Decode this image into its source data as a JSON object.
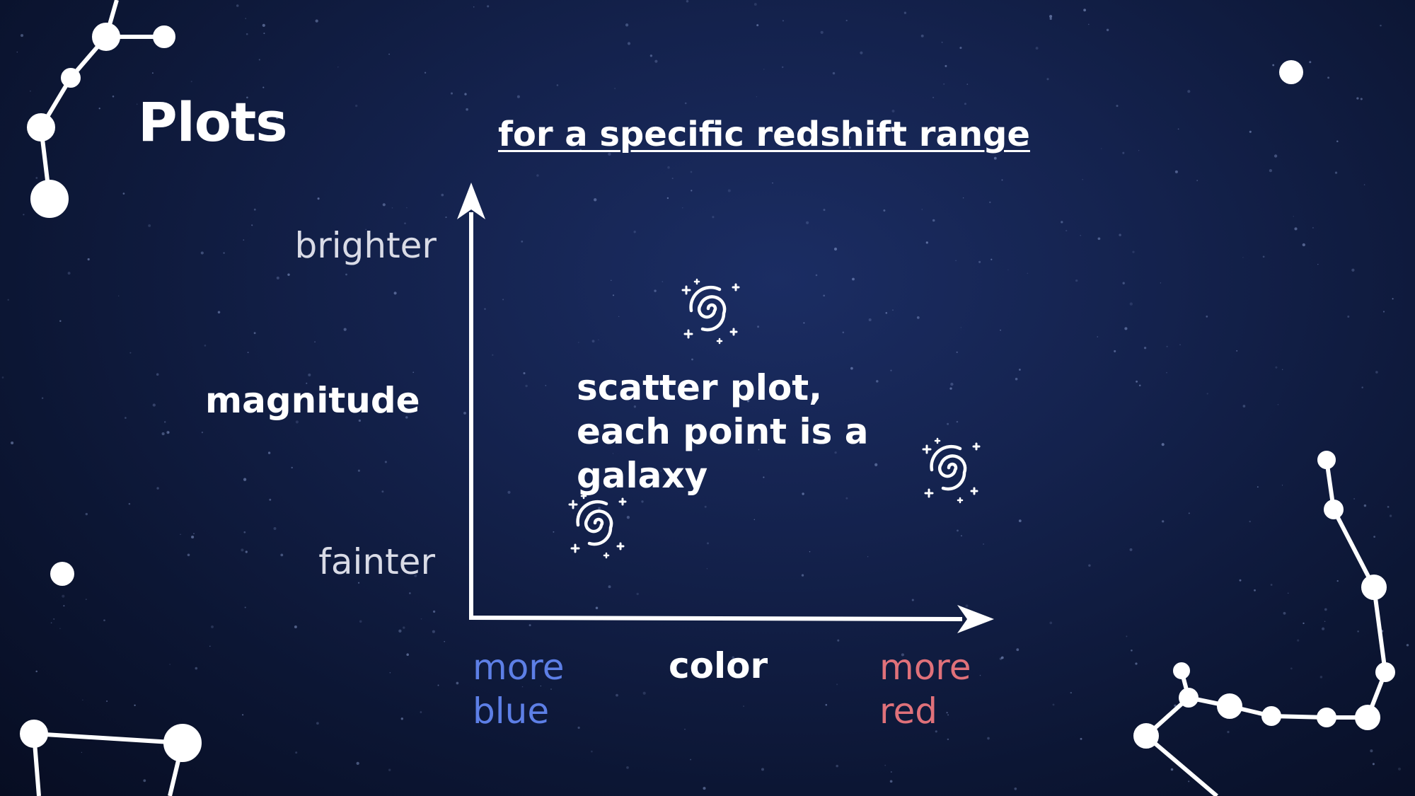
{
  "slide": {
    "title": "Plots",
    "subtitle": "for a specific redshift range",
    "note": "scatter plot, each point is a galaxy"
  },
  "axes": {
    "y_title": "magnitude",
    "y_high_label": "brighter",
    "y_low_label": "fainter",
    "x_title": "color",
    "x_low_label": "more blue",
    "x_high_label": "more red"
  },
  "icons": [
    "galaxy-icon",
    "galaxy-icon",
    "galaxy-icon"
  ],
  "colors": {
    "background": "#14224d",
    "text": "#ffffff",
    "blue_label": "#5d7fe6",
    "red_label": "#e0717a"
  }
}
